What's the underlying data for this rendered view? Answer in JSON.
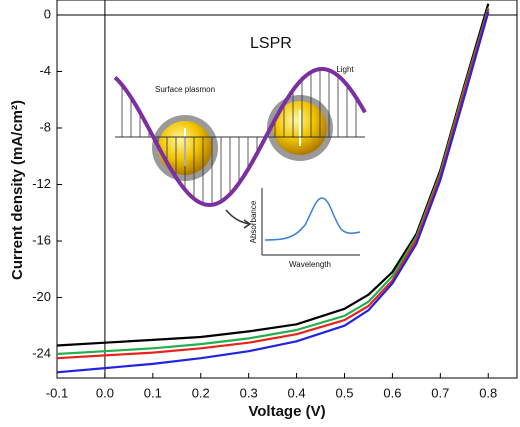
{
  "chart_data": {
    "type": "line",
    "xlabel": "Voltage (V)",
    "ylabel": "Current density (mA/cm²)",
    "x": [
      -0.1,
      0,
      0.1,
      0.2,
      0.3,
      0.4,
      0.5,
      0.55,
      0.6,
      0.65,
      0.7,
      0.75,
      0.8
    ],
    "series": [
      {
        "color": "#000000",
        "values": [
          -23.4,
          -23.2,
          -23.0,
          -22.8,
          -22.4,
          -21.9,
          -20.8,
          -19.8,
          -18.2,
          -15.5,
          -11.0,
          -5.0,
          0.8
        ]
      },
      {
        "color": "#22b14c",
        "values": [
          -24.0,
          -23.8,
          -23.6,
          -23.3,
          -22.9,
          -22.3,
          -21.3,
          -20.3,
          -18.5,
          -15.7,
          -11.2,
          -5.2,
          0.5
        ]
      },
      {
        "color": "#e8231e",
        "values": [
          -24.3,
          -24.1,
          -23.9,
          -23.6,
          -23.2,
          -22.6,
          -21.6,
          -20.6,
          -18.8,
          -15.9,
          -11.4,
          -5.4,
          0.4
        ]
      },
      {
        "color": "#2424e0",
        "values": [
          -25.3,
          -25.0,
          -24.7,
          -24.3,
          -23.8,
          -23.1,
          -22.0,
          -20.9,
          -19.0,
          -16.2,
          -11.7,
          -5.8,
          0.2
        ]
      }
    ],
    "xlim": [
      -0.1,
      0.86
    ],
    "ylim": [
      -25.7,
      1.06
    ],
    "xticks": [
      -0.1,
      {
        "value": 0,
        "label": "0.0"
      },
      0.1,
      0.2,
      0.3,
      0.4,
      0.5,
      0.6,
      0.7,
      0.8
    ],
    "yticks": [
      0,
      -4,
      -8,
      -12,
      -16,
      -20,
      -24
    ],
    "inset": {
      "title": "LSPR",
      "wave_label": "Light",
      "particle_label": "Surface plasmon",
      "plot_ylabel": "Absorbance",
      "plot_xlabel": "Wavelength"
    }
  }
}
